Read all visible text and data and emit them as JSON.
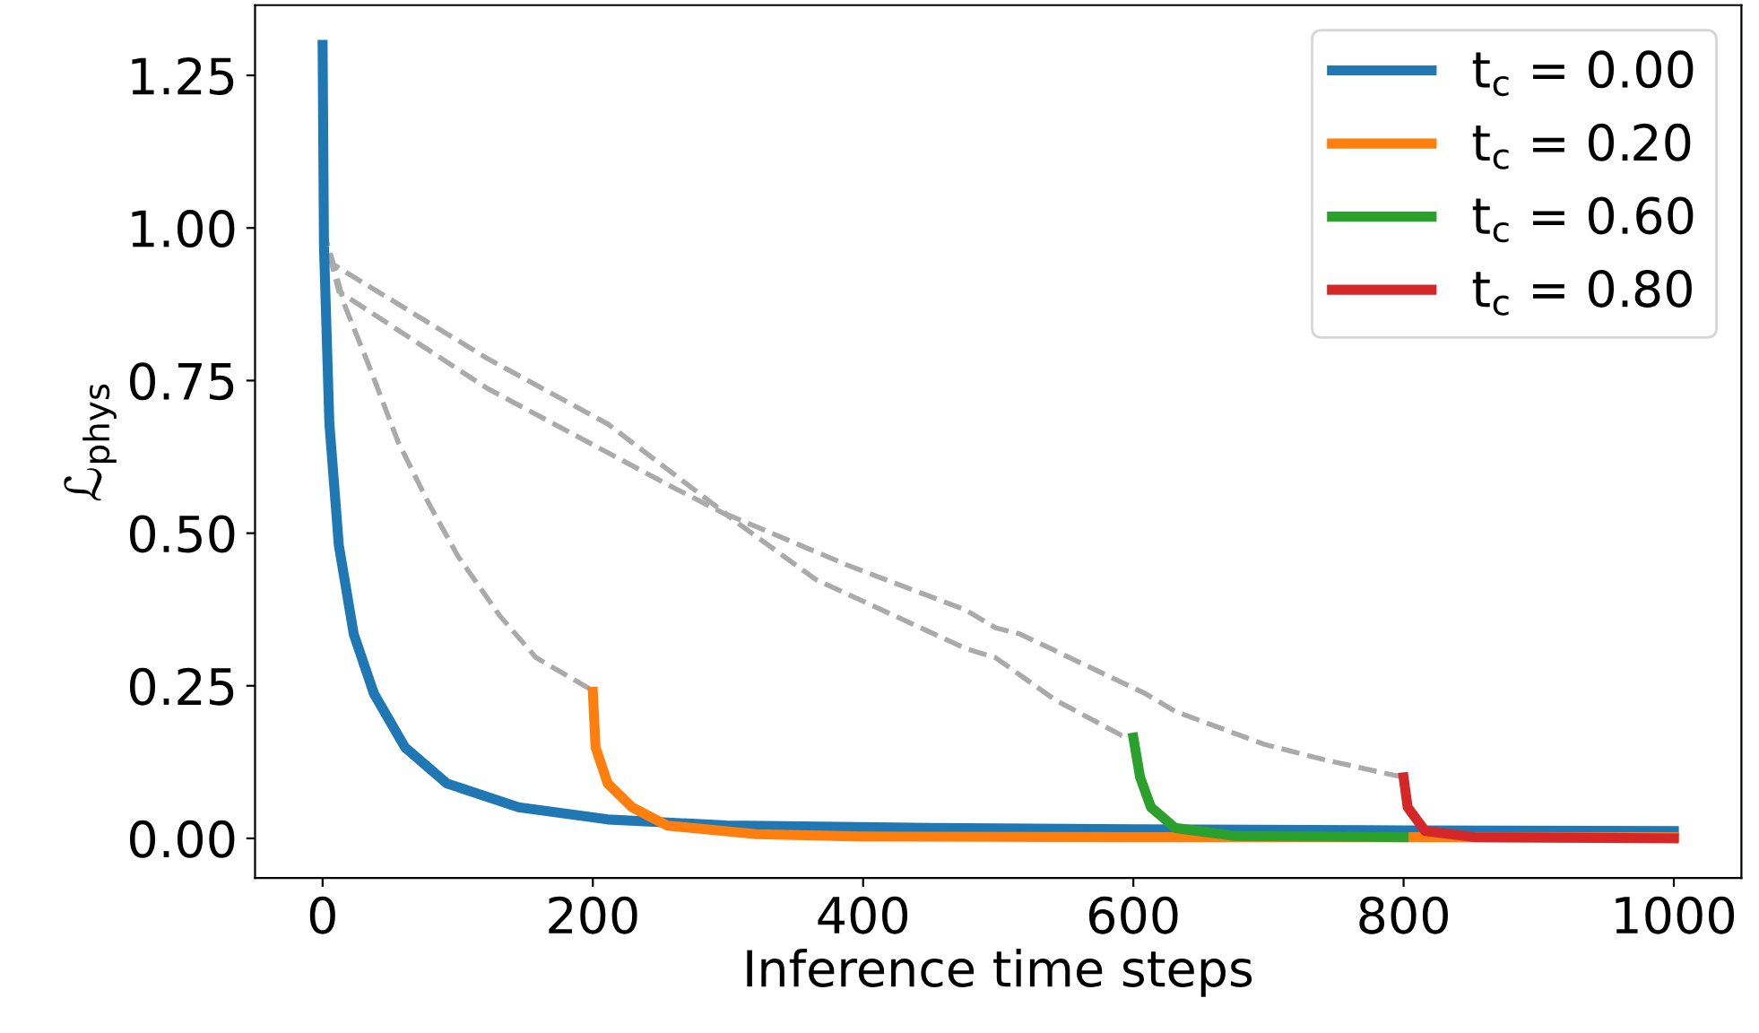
{
  "chart_data": {
    "type": "line",
    "xlabel": "Inference time steps",
    "ylabel": "ℒ$_{phys}$",
    "xlim": [
      -50,
      1050
    ],
    "ylim": [
      -0.065,
      1.365
    ],
    "xticks": [
      0,
      200,
      400,
      600,
      800,
      1000
    ],
    "yticks": [
      {
        "value": 0,
        "label": "0.00"
      },
      {
        "value": 0.25,
        "label": "0.25"
      },
      {
        "value": 0.5,
        "label": "0.50"
      },
      {
        "value": 0.75,
        "label": "0.75"
      },
      {
        "value": 1.0,
        "label": "1.00"
      },
      {
        "value": 1.25,
        "label": "1.25"
      }
    ],
    "grid": false,
    "legend": "top right",
    "series": [
      {
        "color": "#aaaaaa",
        "line_style": "dashed",
        "x": [
          0,
          8,
          16,
          34,
          56,
          78,
          100,
          131,
          158,
          200
        ],
        "values": [
          1.0,
          0.94,
          0.875,
          0.776,
          0.649,
          0.551,
          0.463,
          0.365,
          0.296,
          0.242
        ]
      },
      {
        "color": "#aaaaaa",
        "line_style": "dashed",
        "x": [
          0,
          12,
          122,
          255,
          299,
          365,
          476,
          498,
          542,
          591,
          600
        ],
        "values": [
          1.0,
          0.896,
          0.737,
          0.58,
          0.53,
          0.424,
          0.311,
          0.296,
          0.227,
          0.169,
          0.165
        ]
      },
      {
        "color": "#aaaaaa",
        "line_style": "dashed",
        "x": [
          0,
          8,
          122,
          211,
          299,
          388,
          476,
          498,
          516,
          609,
          631,
          697,
          741,
          800
        ],
        "values": [
          1.0,
          0.94,
          0.786,
          0.679,
          0.531,
          0.448,
          0.374,
          0.345,
          0.335,
          0.237,
          0.208,
          0.154,
          0.129,
          0.1
        ]
      },
      {
        "name": "t$_{c}$ = 0.00",
        "color": "#1f77b4",
        "x": [
          0,
          1,
          5,
          12,
          23,
          38,
          61,
          92,
          145,
          211,
          299,
          450,
          600,
          800,
          1000
        ],
        "values": [
          1.3,
          0.97,
          0.68,
          0.48,
          0.335,
          0.237,
          0.149,
          0.09,
          0.051,
          0.031,
          0.021,
          0.017,
          0.015,
          0.013,
          0.012
        ]
      },
      {
        "name": "t$_{c}$ = 0.20",
        "color": "#ff7f0e",
        "x": [
          200,
          202,
          211,
          229,
          255,
          321,
          400,
          600,
          800,
          1000
        ],
        "values": [
          0.24,
          0.149,
          0.09,
          0.051,
          0.021,
          0.007,
          0.003,
          0.002,
          0.002,
          0.002
        ]
      },
      {
        "name": "t$_{c}$ = 0.60",
        "color": "#2ca02c",
        "x": [
          600,
          605,
          613,
          631,
          675,
          800
        ],
        "values": [
          0.165,
          0.1,
          0.051,
          0.017,
          0.004,
          0.002
        ]
      },
      {
        "name": "t$_{c}$ = 0.80",
        "color": "#d62728",
        "x": [
          800,
          803,
          816,
          852,
          1000
        ],
        "values": [
          0.1,
          0.051,
          0.012,
          0.002,
          0.0
        ]
      }
    ]
  }
}
